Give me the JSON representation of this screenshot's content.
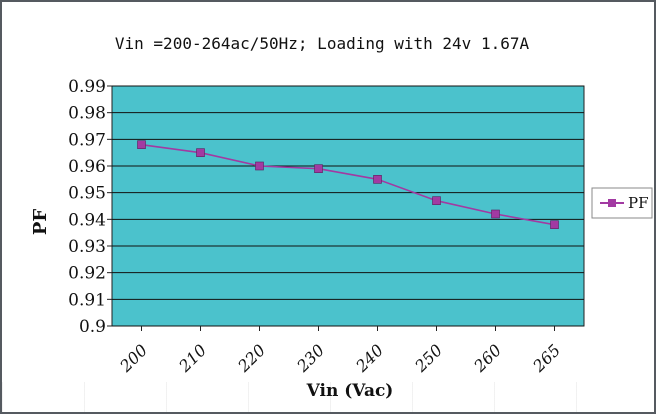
{
  "chart_data": {
    "type": "line",
    "title": "Vin =200-264ac/50Hz; Loading with 24v 1.67A",
    "xlabel": "Vin (Vac)",
    "ylabel": "PF",
    "categories": [
      "200",
      "210",
      "220",
      "230",
      "240",
      "250",
      "260",
      "265"
    ],
    "series": [
      {
        "name": "PF",
        "values": [
          0.968,
          0.965,
          0.96,
          0.959,
          0.955,
          0.947,
          0.942,
          0.938
        ],
        "color": "#a23aa2"
      }
    ],
    "ylim": [
      0.9,
      0.99
    ],
    "yticks": [
      "0.9",
      "0.91",
      "0.92",
      "0.93",
      "0.94",
      "0.95",
      "0.96",
      "0.97",
      "0.98",
      "0.99"
    ],
    "grid": true,
    "legend_position": "right",
    "plot_background": "#4bc2cc",
    "gridline_color": "#111111"
  }
}
